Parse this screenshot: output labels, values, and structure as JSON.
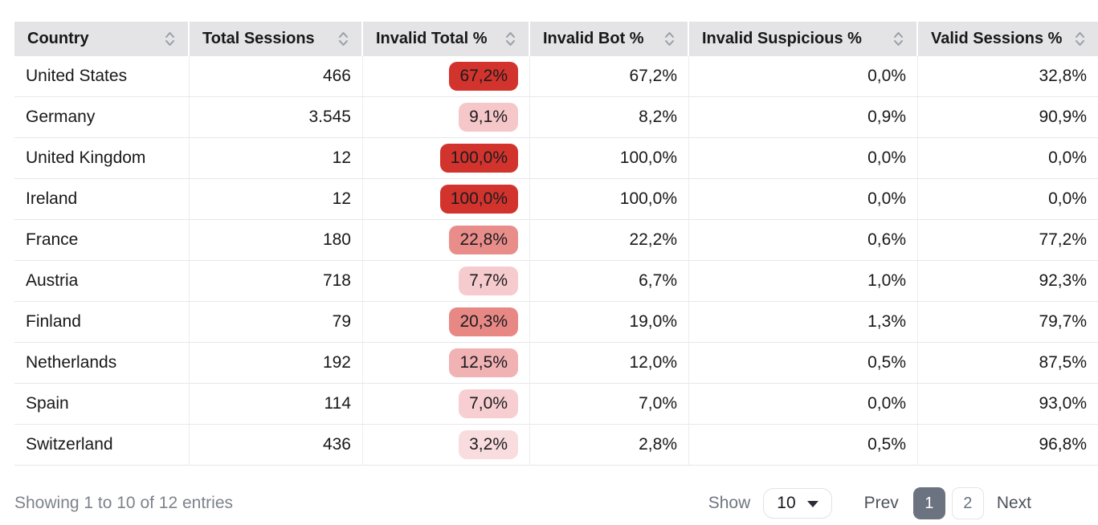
{
  "table": {
    "columns": [
      {
        "id": "country",
        "label": "Country",
        "align": "left"
      },
      {
        "id": "total-sessions",
        "label": "Total Sessions",
        "align": "right"
      },
      {
        "id": "invalid-total-pct",
        "label": "Invalid Total %",
        "align": "right"
      },
      {
        "id": "invalid-bot-pct",
        "label": "Invalid Bot %",
        "align": "right"
      },
      {
        "id": "invalid-suspicious-pct",
        "label": "Invalid Suspicious %",
        "align": "right"
      },
      {
        "id": "valid-sessions-pct",
        "label": "Valid Sessions %",
        "align": "right"
      }
    ],
    "rows": [
      {
        "country": "United States",
        "total_sessions": "466",
        "invalid_total": "67,2%",
        "invalid_total_color": "#d2332d",
        "invalid_bot": "67,2%",
        "invalid_suspicious": "0,0%",
        "valid_sessions": "32,8%"
      },
      {
        "country": "Germany",
        "total_sessions": "3.545",
        "invalid_total": "9,1%",
        "invalid_total_color": "#f6c7c9",
        "invalid_bot": "8,2%",
        "invalid_suspicious": "0,9%",
        "valid_sessions": "90,9%"
      },
      {
        "country": "United Kingdom",
        "total_sessions": "12",
        "invalid_total": "100,0%",
        "invalid_total_color": "#d2332d",
        "invalid_bot": "100,0%",
        "invalid_suspicious": "0,0%",
        "valid_sessions": "0,0%"
      },
      {
        "country": "Ireland",
        "total_sessions": "12",
        "invalid_total": "100,0%",
        "invalid_total_color": "#d2332d",
        "invalid_bot": "100,0%",
        "invalid_suspicious": "0,0%",
        "valid_sessions": "0,0%"
      },
      {
        "country": "France",
        "total_sessions": "180",
        "invalid_total": "22,8%",
        "invalid_total_color": "#e98d8a",
        "invalid_bot": "22,2%",
        "invalid_suspicious": "0,6%",
        "valid_sessions": "77,2%"
      },
      {
        "country": "Austria",
        "total_sessions": "718",
        "invalid_total": "7,7%",
        "invalid_total_color": "#f6cbcd",
        "invalid_bot": "6,7%",
        "invalid_suspicious": "1,0%",
        "valid_sessions": "92,3%"
      },
      {
        "country": "Finland",
        "total_sessions": "79",
        "invalid_total": "20,3%",
        "invalid_total_color": "#e88885",
        "invalid_bot": "19,0%",
        "invalid_suspicious": "1,3%",
        "valid_sessions": "79,7%"
      },
      {
        "country": "Netherlands",
        "total_sessions": "192",
        "invalid_total": "12,5%",
        "invalid_total_color": "#f1b2b3",
        "invalid_bot": "12,0%",
        "invalid_suspicious": "0,5%",
        "valid_sessions": "87,5%"
      },
      {
        "country": "Spain",
        "total_sessions": "114",
        "invalid_total": "7,0%",
        "invalid_total_color": "#f7ced1",
        "invalid_bot": "7,0%",
        "invalid_suspicious": "0,0%",
        "valid_sessions": "93,0%"
      },
      {
        "country": "Switzerland",
        "total_sessions": "436",
        "invalid_total": "3,2%",
        "invalid_total_color": "#f9dcde",
        "invalid_bot": "2,8%",
        "invalid_suspicious": "0,5%",
        "valid_sessions": "96,8%"
      }
    ]
  },
  "footer": {
    "showing_text": "Showing 1 to 10 of 12 entries",
    "show_label": "Show",
    "page_size": "10",
    "prev_label": "Prev",
    "next_label": "Next",
    "pages": [
      {
        "label": "1",
        "active": true
      },
      {
        "label": "2",
        "active": false
      }
    ]
  },
  "colors": {
    "badge_strong_red": "#d2332d",
    "active_page_bg": "#6b7280",
    "header_bg": "#e4e4e7"
  }
}
